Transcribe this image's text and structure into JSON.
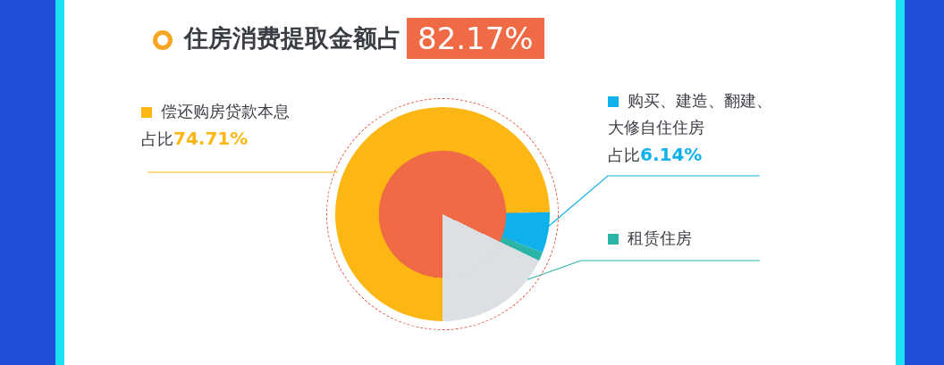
{
  "chart_data": {
    "type": "donut",
    "title": "住房消费提取金额占 82.17%",
    "categories": [
      "偿还购房贷款本息",
      "购买、建造、翻建、大修自住住房",
      "租赁住房",
      null
    ],
    "values": [
      74.71,
      6.14,
      1.32,
      17.83
    ],
    "colors": [
      "#fdb714",
      "#0eb1ec",
      "#2bb5a9",
      "#dcdfe4"
    ],
    "legend": "top",
    "value_labels": [
      "占比74.71%",
      "占比6.14%",
      null,
      null
    ]
  }
}
